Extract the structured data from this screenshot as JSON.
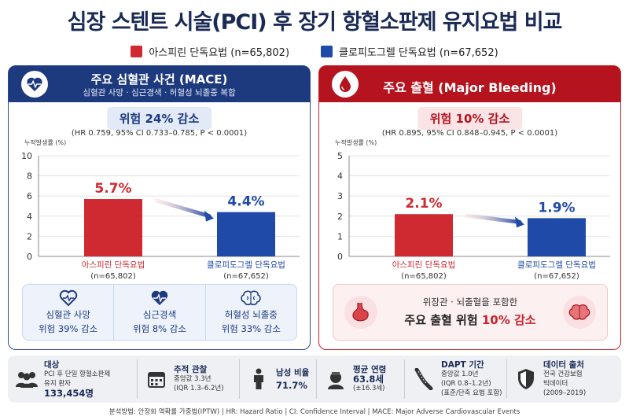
{
  "title": "심장 스텐트 시술(PCI) 후 장기 항혈소판제 유지요법 비교",
  "legend": [
    {
      "label": "아스피린 단독요법 (n=65,802)",
      "color": "#cf2a31"
    },
    {
      "label": "클로피도그렐 단독요법 (n=67,652)",
      "color": "#1f4aa8"
    }
  ],
  "left_panel": {
    "title": "주요 심혈관 사건 (MACE)",
    "subtitle": "심혈관 사망 · 심근경색 · 허혈성 뇌졸중 복합",
    "risk": "위험 24% 감소",
    "stat": "(HR 0.759, 95% CI 0.733–0.785, P < 0.0001)",
    "sub_items": [
      {
        "icon": "heart-icon",
        "line1": "심혈관 사망",
        "line2": "위험 39% 감소"
      },
      {
        "icon": "heart-pulse-icon",
        "line1": "심근경색",
        "line2": "위험 8% 감소"
      },
      {
        "icon": "brain-icon",
        "line1": "허혈성 뇌졸중",
        "line2": "위험 33% 감소"
      }
    ]
  },
  "right_panel": {
    "title": "주요 출혈 (Major Bleeding)",
    "risk": "위험 10% 감소",
    "stat": "(HR 0.895, 95% CI 0.848–0.945, P < 0.0001)",
    "msg1": "위장관 · 뇌출혈을 포함한",
    "msg2_pre": "주요 출혈 위험 ",
    "msg2_hl": "10% 감소"
  },
  "chart_data": [
    {
      "type": "bar",
      "ylabel": "누적발생률 (%)",
      "ylim": [
        0,
        10
      ],
      "yticks": [
        0,
        2,
        4,
        6,
        8,
        10
      ],
      "categories": [
        "아스피린 단독요법",
        "클로피도그렐 단독요법"
      ],
      "n_labels": [
        "(n=65,802)",
        "(n=67,652)"
      ],
      "values": [
        5.7,
        4.4
      ],
      "value_labels": [
        "5.7%",
        "4.4%"
      ],
      "colors": [
        "#cf2a31",
        "#1f4aa8"
      ]
    },
    {
      "type": "bar",
      "ylabel": "누적발생률 (%)",
      "ylim": [
        0,
        5
      ],
      "yticks": [
        0,
        1,
        2,
        3,
        4,
        5
      ],
      "categories": [
        "아스피린 단독요법",
        "클로피도그렐 단독요법"
      ],
      "n_labels": [
        "(n=65,802)",
        "(n=67,652)"
      ],
      "values": [
        2.1,
        1.9
      ],
      "value_labels": [
        "2.1%",
        "1.9%"
      ],
      "colors": [
        "#cf2a31",
        "#1f4aa8"
      ]
    }
  ],
  "bottom": [
    {
      "icon": "people-icon",
      "title": "대상",
      "lines": [
        "PCI 후 단일 항혈소판제",
        "유지 환자"
      ],
      "value": "133,454명"
    },
    {
      "icon": "calendar-icon",
      "title": "추적 관찰",
      "lines": [
        "중앙값 3.3년",
        "(IQR 1.3–6.2년)"
      ],
      "value": ""
    },
    {
      "icon": "person-icon",
      "title": "남성 비율",
      "lines": [],
      "value": "71.7%"
    },
    {
      "icon": "face-icon",
      "title": "평균 연령",
      "lines": [],
      "value": "63.8세",
      "extra": "(±16.3세)"
    },
    {
      "icon": "vessel-icon",
      "title": "DAPT 기간",
      "lines": [
        "중앙값 1.0년",
        "(IQR 0.8–1.2년)",
        "(표준/단축 요법 포함)"
      ],
      "value": ""
    },
    {
      "icon": "shield-icon",
      "title": "데이터 출처",
      "lines": [
        "전국 건강보험",
        "빅데이터",
        "(2009–2019)"
      ],
      "value": ""
    }
  ],
  "footer": "분석방법: 안정화 역확률 가중법(IPTW)   |   HR: Hazard Ratio   |   CI: Confidence Interval   |   MACE: Major Adverse Cardiovascular Events"
}
